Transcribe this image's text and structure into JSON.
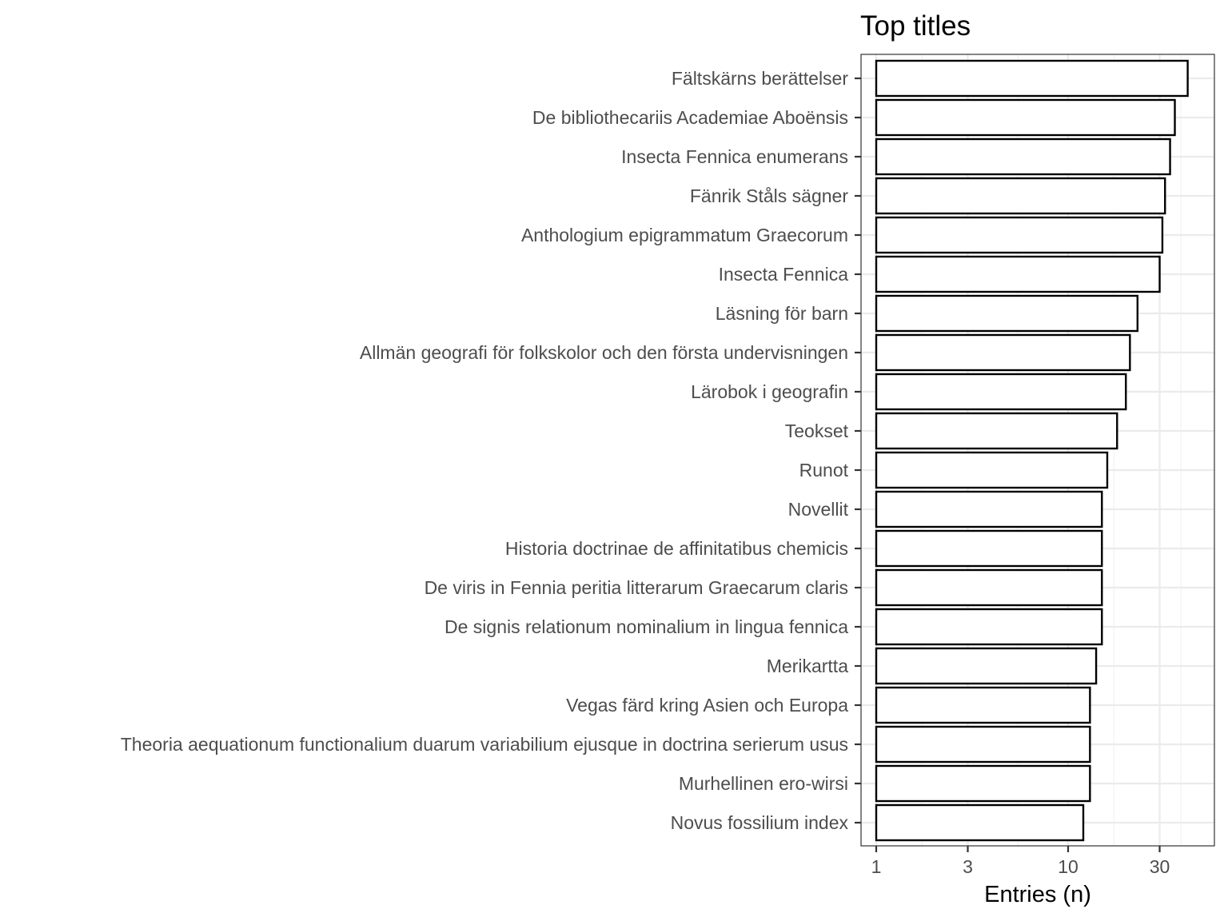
{
  "chart_data": {
    "type": "bar",
    "orientation": "horizontal",
    "title": "Top titles",
    "xlabel": "Entries (n)",
    "ylabel": "",
    "x_scale": "log10",
    "xlim": [
      1,
      50
    ],
    "x_ticks": [
      1,
      3,
      10,
      30
    ],
    "x_tick_labels": [
      "1",
      "3",
      "10",
      "30"
    ],
    "grid": true,
    "bar_fill": "#ffffff",
    "bar_stroke": "#000000",
    "categories": [
      "Fältskärns berättelser",
      "De bibliothecariis Academiae Aboënsis",
      "Insecta Fennica enumerans",
      "Fänrik Ståls sägner",
      "Anthologium epigrammatum Graecorum",
      "Insecta Fennica",
      "Läsning för barn",
      "Allmän geografi för folkskolor och den första undervisningen",
      "Lärobok i geografin",
      "Teokset",
      "Runot",
      "Novellit",
      "Historia doctrinae de affinitatibus chemicis",
      "De viris in Fennia peritia litterarum Graecarum claris",
      "De signis relationum nominalium in lingua fennica",
      "Merikartta",
      "Vegas färd kring Asien och Europa",
      "Theoria aequationum functionalium duarum variabilium ejusque in doctrina serierum usus",
      "Murhellinen ero-wirsi",
      "Novus fossilium index"
    ],
    "values": [
      42,
      36,
      34,
      32,
      31,
      30,
      23,
      21,
      20,
      18,
      16,
      15,
      15,
      15,
      15,
      14,
      13,
      13,
      13,
      12
    ]
  }
}
